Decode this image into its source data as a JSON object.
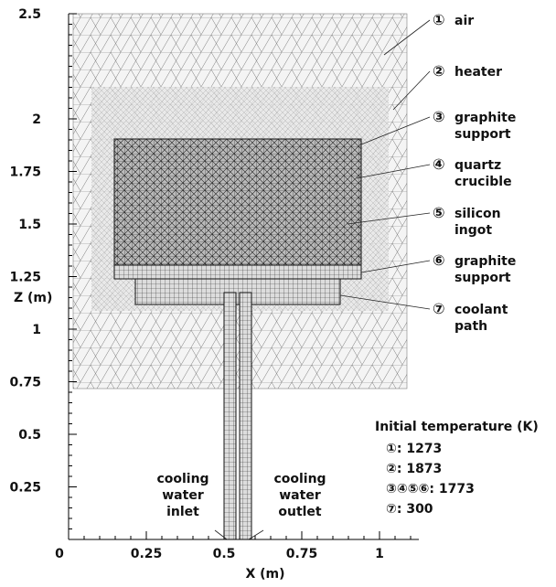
{
  "axes": {
    "x_label": "X (m)",
    "y_label": "Z (m)",
    "xticks": [
      0,
      0.25,
      0.5,
      0.75,
      1
    ],
    "yticks": [
      0.25,
      0.5,
      0.75,
      1,
      1.25,
      1.5,
      1.75,
      2,
      2.5
    ]
  },
  "regions": [
    {
      "number": "①",
      "lines": [
        "air"
      ]
    },
    {
      "number": "②",
      "lines": [
        "heater"
      ]
    },
    {
      "number": "③",
      "lines": [
        "graphite",
        "support"
      ]
    },
    {
      "number": "④",
      "lines": [
        "quartz",
        "crucible"
      ]
    },
    {
      "number": "⑤",
      "lines": [
        "silicon",
        "ingot"
      ]
    },
    {
      "number": "⑥",
      "lines": [
        "graphite",
        "support"
      ]
    },
    {
      "number": "⑦",
      "lines": [
        "coolant",
        "path"
      ]
    }
  ],
  "annotations": [
    {
      "lines": [
        "cooling",
        "water",
        "inlet"
      ]
    },
    {
      "lines": [
        "cooling",
        "water",
        "outlet"
      ]
    }
  ],
  "initial_temperature": {
    "title": "Initial temperature (K)",
    "entries": [
      "①: 1273",
      "②: 1873",
      "③④⑤⑥: 1773",
      "⑦: 300"
    ]
  }
}
